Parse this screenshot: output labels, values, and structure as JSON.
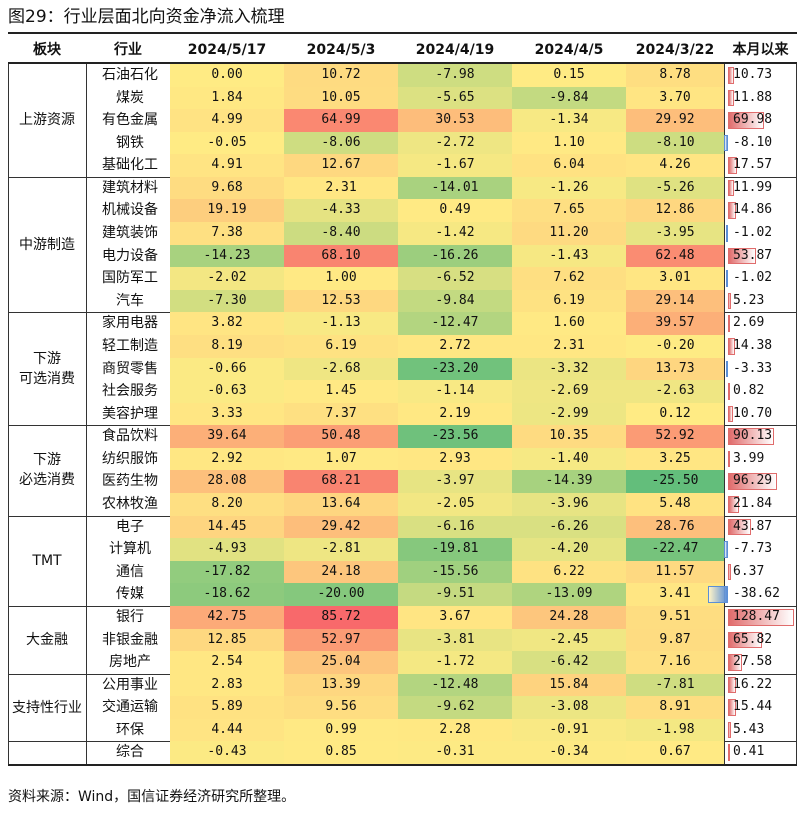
{
  "title": "图29：行业层面北向资金净流入梳理",
  "source": "资料来源：Wind，国信证券经济研究所整理。",
  "chart_data": {
    "type": "table",
    "headers": [
      "板块",
      "行业",
      "2024/5/17",
      "2024/5/3",
      "2024/4/19",
      "2024/4/5",
      "2024/3/22",
      "本月以来"
    ],
    "value_columns": [
      "2024/5/17",
      "2024/5/3",
      "2024/4/19",
      "2024/4/5",
      "2024/3/22"
    ],
    "mtd_column": "本月以来",
    "color_scale": {
      "low": "#63be7b",
      "mid": "#ffeb84",
      "high": "#f8696b"
    },
    "bar_colors": {
      "positive": "#e06c6c",
      "negative": "#5b8fd6"
    },
    "groups": [
      {
        "sector": "上游资源",
        "rows": [
          {
            "industry": "石油石化",
            "values": [
              0.0,
              10.72,
              -7.98,
              0.15,
              8.78
            ],
            "mtd": 10.73
          },
          {
            "industry": "煤炭",
            "values": [
              1.84,
              10.05,
              -5.65,
              -9.84,
              3.7
            ],
            "mtd": 11.88
          },
          {
            "industry": "有色金属",
            "values": [
              4.99,
              64.99,
              30.53,
              -1.34,
              29.92
            ],
            "mtd": 69.98
          },
          {
            "industry": "钢铁",
            "values": [
              -0.05,
              -8.06,
              -2.72,
              1.1,
              -8.1
            ],
            "mtd": -8.1
          },
          {
            "industry": "基础化工",
            "values": [
              4.91,
              12.67,
              -1.67,
              6.04,
              4.26
            ],
            "mtd": 17.57
          }
        ]
      },
      {
        "sector": "中游制造",
        "rows": [
          {
            "industry": "建筑材料",
            "values": [
              9.68,
              2.31,
              -14.01,
              -1.26,
              -5.26
            ],
            "mtd": 11.99
          },
          {
            "industry": "机械设备",
            "values": [
              19.19,
              -4.33,
              0.49,
              7.65,
              12.86
            ],
            "mtd": 14.86
          },
          {
            "industry": "建筑装饰",
            "values": [
              7.38,
              -8.4,
              -1.42,
              11.2,
              -3.95
            ],
            "mtd": -1.02
          },
          {
            "industry": "电力设备",
            "values": [
              -14.23,
              68.1,
              -16.26,
              -1.43,
              62.48
            ],
            "mtd": 53.87
          },
          {
            "industry": "国防军工",
            "values": [
              -2.02,
              1.0,
              -6.52,
              7.62,
              3.01
            ],
            "mtd": -1.02
          },
          {
            "industry": "汽车",
            "values": [
              -7.3,
              12.53,
              -9.84,
              6.19,
              29.14
            ],
            "mtd": 5.23
          }
        ]
      },
      {
        "sector": "下游\n可选消费",
        "rows": [
          {
            "industry": "家用电器",
            "values": [
              3.82,
              -1.13,
              -12.47,
              1.6,
              39.57
            ],
            "mtd": 2.69
          },
          {
            "industry": "轻工制造",
            "values": [
              8.19,
              6.19,
              2.72,
              2.31,
              -0.2
            ],
            "mtd": 14.38
          },
          {
            "industry": "商贸零售",
            "values": [
              -0.66,
              -2.68,
              -23.2,
              -3.32,
              13.73
            ],
            "mtd": -3.33
          },
          {
            "industry": "社会服务",
            "values": [
              -0.63,
              1.45,
              -1.14,
              -2.69,
              -2.63
            ],
            "mtd": 0.82
          },
          {
            "industry": "美容护理",
            "values": [
              3.33,
              7.37,
              2.19,
              -2.99,
              0.12
            ],
            "mtd": 10.7
          }
        ]
      },
      {
        "sector": "下游\n必选消费",
        "rows": [
          {
            "industry": "食品饮料",
            "values": [
              39.64,
              50.48,
              -23.56,
              10.35,
              52.92
            ],
            "mtd": 90.13
          },
          {
            "industry": "纺织服饰",
            "values": [
              2.92,
              1.07,
              2.93,
              -1.4,
              3.25
            ],
            "mtd": 3.99
          },
          {
            "industry": "医药生物",
            "values": [
              28.08,
              68.21,
              -3.97,
              -14.39,
              -25.5
            ],
            "mtd": 96.29
          },
          {
            "industry": "农林牧渔",
            "values": [
              8.2,
              13.64,
              -2.05,
              -3.96,
              5.48
            ],
            "mtd": 21.84
          }
        ]
      },
      {
        "sector": "TMT",
        "rows": [
          {
            "industry": "电子",
            "values": [
              14.45,
              29.42,
              -6.16,
              -6.26,
              28.76
            ],
            "mtd": 43.87
          },
          {
            "industry": "计算机",
            "values": [
              -4.93,
              -2.81,
              -19.81,
              -4.2,
              -22.47
            ],
            "mtd": -7.73
          },
          {
            "industry": "通信",
            "values": [
              -17.82,
              24.18,
              -15.56,
              6.22,
              11.57
            ],
            "mtd": 6.37
          },
          {
            "industry": "传媒",
            "values": [
              -18.62,
              -20.0,
              -9.51,
              -13.09,
              3.41
            ],
            "mtd": -38.62
          }
        ]
      },
      {
        "sector": "大金融",
        "rows": [
          {
            "industry": "银行",
            "values": [
              42.75,
              85.72,
              3.67,
              24.28,
              9.51
            ],
            "mtd": 128.47
          },
          {
            "industry": "非银金融",
            "values": [
              12.85,
              52.97,
              -3.81,
              -2.45,
              9.87
            ],
            "mtd": 65.82
          },
          {
            "industry": "房地产",
            "values": [
              2.54,
              25.04,
              -1.72,
              -6.42,
              7.16
            ],
            "mtd": 27.58
          }
        ]
      },
      {
        "sector": "支持性行业",
        "rows": [
          {
            "industry": "公用事业",
            "values": [
              2.83,
              13.39,
              -12.48,
              15.84,
              -7.81
            ],
            "mtd": 16.22
          },
          {
            "industry": "交通运输",
            "values": [
              5.89,
              9.56,
              -9.62,
              -3.08,
              8.91
            ],
            "mtd": 15.44
          },
          {
            "industry": "环保",
            "values": [
              4.44,
              0.99,
              2.28,
              -0.91,
              -1.98
            ],
            "mtd": 5.43
          }
        ]
      },
      {
        "sector": "",
        "rows": [
          {
            "industry": "综合",
            "values": [
              -0.43,
              0.85,
              -0.31,
              -0.34,
              0.67
            ],
            "mtd": 0.41
          }
        ]
      }
    ]
  }
}
